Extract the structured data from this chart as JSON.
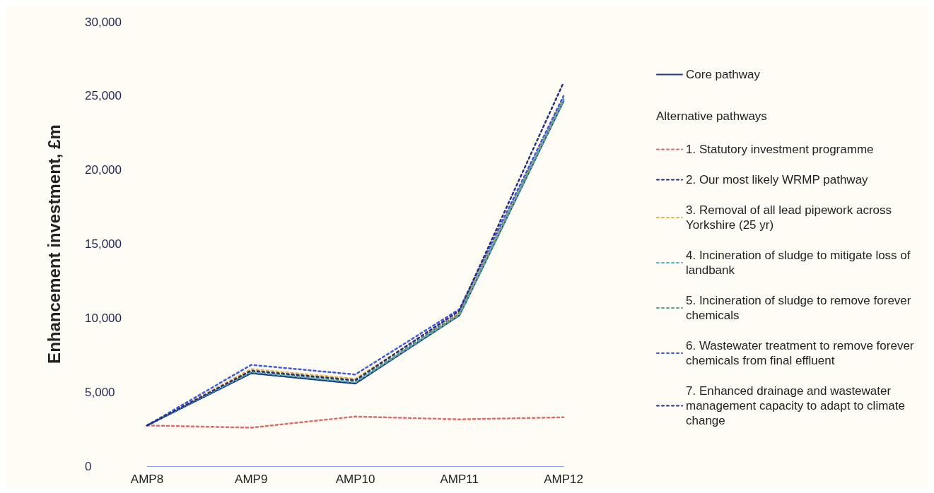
{
  "chart_data": {
    "type": "line",
    "ylabel": "Enhancement investment, £m",
    "categories": [
      "AMP8",
      "AMP9",
      "AMP10",
      "AMP11",
      "AMP12"
    ],
    "ylim": [
      0,
      30000
    ],
    "yticks": [
      0,
      {
        "value": 5000,
        "label": "5,000"
      },
      {
        "value": 10000,
        "label": "10,000"
      },
      {
        "value": 15000,
        "label": "15,000"
      },
      {
        "value": 20000,
        "label": "20,000"
      },
      {
        "value": 25000,
        "label": "25,000"
      },
      {
        "value": 30000,
        "label": "30,000"
      }
    ],
    "grid": false,
    "legend": "right",
    "legend_title": "Alternative pathways",
    "marker": "none",
    "series": [
      {
        "name": "Core pathway",
        "color": "#1f3a8a",
        "line_style": "solid",
        "values": [
          2750,
          6280,
          5580,
          10190,
          24650
        ]
      },
      {
        "name": "1. Statutory investment programme",
        "color": "#e06a66",
        "line_style": "dotted",
        "values": [
          2750,
          2600,
          3350,
          3160,
          3300
        ]
      },
      {
        "name": "2. Our most likely WRMP pathway",
        "color": "#1c2a6b",
        "line_style": "dotted",
        "values": [
          2750,
          6300,
          5600,
          10370,
          24800
        ]
      },
      {
        "name": "3. Removal of all lead pipework across Yorkshire (25 yr)",
        "color": "#e8b54c",
        "line_style": "dotted",
        "values": [
          2750,
          6560,
          5900,
          10400,
          24900
        ]
      },
      {
        "name": "4. Incineration of sludge to mitigate loss of landbank",
        "color": "#5aaed0",
        "line_style": "dotted",
        "values": [
          2750,
          6350,
          5650,
          10220,
          24700
        ]
      },
      {
        "name": "5. Incineration of sludge to remove forever chemicals",
        "color": "#5aa88a",
        "line_style": "dotted",
        "values": [
          2750,
          6400,
          5700,
          10250,
          24750
        ]
      },
      {
        "name": "6. Wastewater treatment to remove forever chemicals from final effluent",
        "color": "#3d5ae6",
        "line_style": "dotted",
        "values": [
          2750,
          6840,
          6190,
          10600,
          25000
        ]
      },
      {
        "name": "7. Enhanced drainage and wastewater management capacity to adapt to climate change",
        "color": "#23307e",
        "line_style": "dotted",
        "values": [
          2750,
          6450,
          5800,
          10500,
          25900
        ]
      }
    ]
  }
}
